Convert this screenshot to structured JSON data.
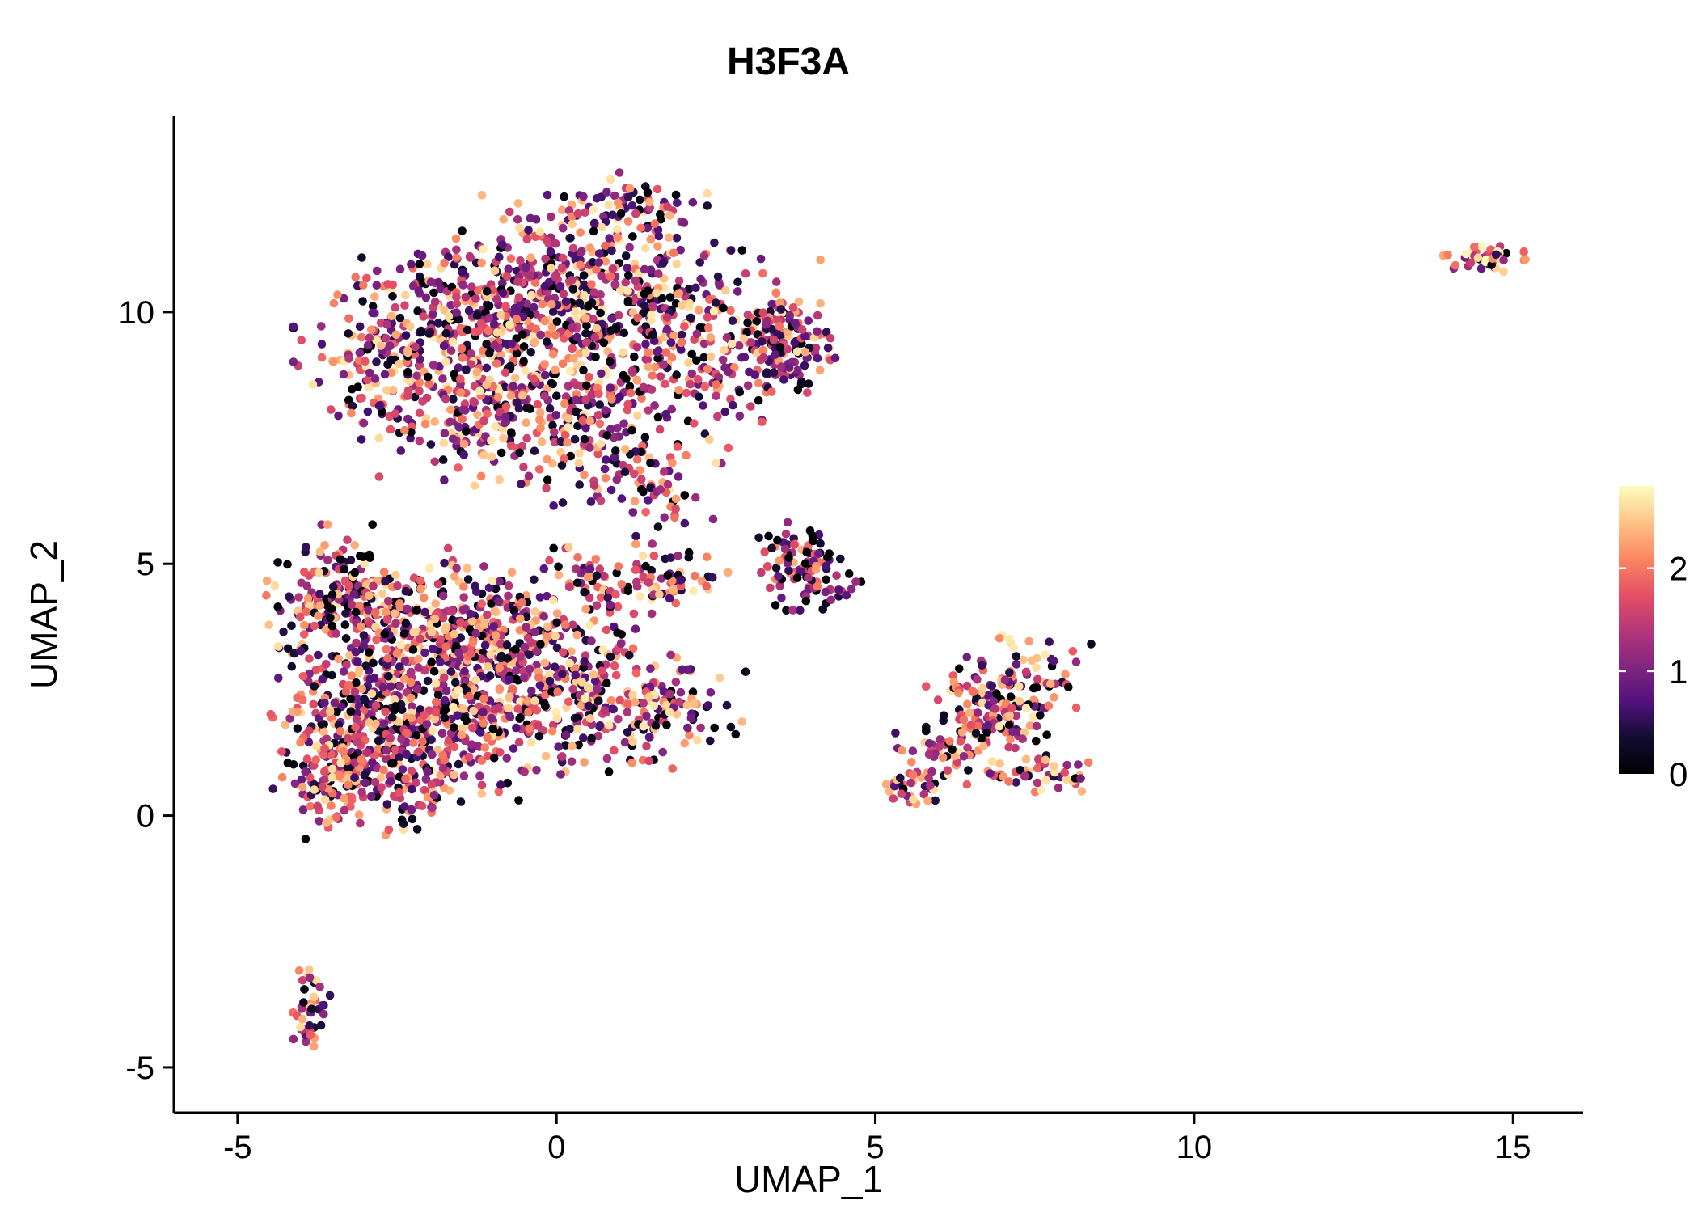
{
  "chart_data": {
    "type": "scatter",
    "title": "H3F3A",
    "xlabel": "UMAP_1",
    "ylabel": "UMAP_2",
    "xlim": [
      -6.0,
      16.1
    ],
    "ylim": [
      -5.9,
      13.9
    ],
    "xticks": [
      -5,
      0,
      5,
      10,
      15
    ],
    "yticks": [
      -5,
      0,
      5,
      10
    ],
    "grid": false,
    "background": "#ffffff",
    "axis_color": "#000000",
    "legend": {
      "type": "colorbar",
      "position": "right",
      "ticks": [
        0,
        1,
        2
      ],
      "vmax": 2.8,
      "colormap": "magma",
      "stops": [
        {
          "t": 0.0,
          "color": "#000004"
        },
        {
          "t": 0.125,
          "color": "#120d31"
        },
        {
          "t": 0.25,
          "color": "#51127c"
        },
        {
          "t": 0.375,
          "color": "#822681"
        },
        {
          "t": 0.5,
          "color": "#b63679"
        },
        {
          "t": 0.625,
          "color": "#e65164"
        },
        {
          "t": 0.75,
          "color": "#fb8861"
        },
        {
          "t": 0.875,
          "color": "#fec488"
        },
        {
          "t": 1.0,
          "color": "#fcfdbf"
        }
      ]
    },
    "points": {
      "seed": 42,
      "radius": 5.3,
      "zero_fraction": 0.06,
      "value_max": 2.7,
      "clusters": [
        {
          "name": "upper-main-cluster",
          "vshift": 0,
          "blobs": [
            {
              "cx": -2.4,
              "cy": 9.2,
              "sx": 0.75,
              "sy": 0.85,
              "n": 230
            },
            {
              "cx": -1.0,
              "cy": 10.0,
              "sx": 0.8,
              "sy": 0.8,
              "n": 250
            },
            {
              "cx": 0.5,
              "cy": 10.6,
              "sx": 0.9,
              "sy": 0.75,
              "n": 300
            },
            {
              "cx": 1.1,
              "cy": 12.0,
              "sx": 0.55,
              "sy": 0.35,
              "n": 70
            },
            {
              "cx": 0.2,
              "cy": 8.6,
              "sx": 1.1,
              "sy": 0.7,
              "n": 280
            },
            {
              "cx": 2.3,
              "cy": 9.5,
              "sx": 0.8,
              "sy": 0.75,
              "n": 220
            },
            {
              "cx": 3.6,
              "cy": 9.3,
              "sx": 0.35,
              "sy": 0.45,
              "n": 110
            },
            {
              "cx": -1.4,
              "cy": 7.7,
              "sx": 0.6,
              "sy": 0.5,
              "n": 90
            },
            {
              "cx": 0.9,
              "cy": 7.0,
              "sx": 0.7,
              "sy": 0.5,
              "n": 90
            },
            {
              "cx": 1.7,
              "cy": 6.2,
              "sx": 0.35,
              "sy": 0.35,
              "n": 25
            }
          ]
        },
        {
          "name": "lower-left-main-cluster",
          "vshift": 0,
          "blobs": [
            {
              "cx": -3.4,
              "cy": 4.4,
              "sx": 0.55,
              "sy": 0.6,
              "n": 140
            },
            {
              "cx": -2.0,
              "cy": 3.7,
              "sx": 0.85,
              "sy": 0.7,
              "n": 300
            },
            {
              "cx": -0.6,
              "cy": 3.3,
              "sx": 0.8,
              "sy": 0.7,
              "n": 260
            },
            {
              "cx": -3.1,
              "cy": 2.2,
              "sx": 0.6,
              "sy": 0.8,
              "n": 230
            },
            {
              "cx": -1.7,
              "cy": 1.8,
              "sx": 0.8,
              "sy": 0.65,
              "n": 230
            },
            {
              "cx": 0.3,
              "cy": 2.2,
              "sx": 0.8,
              "sy": 0.6,
              "n": 180
            },
            {
              "cx": 1.7,
              "cy": 2.2,
              "sx": 0.55,
              "sy": 0.5,
              "n": 90
            },
            {
              "cx": -3.5,
              "cy": 0.8,
              "sx": 0.45,
              "sy": 0.55,
              "n": 130
            },
            {
              "cx": -2.3,
              "cy": 0.6,
              "sx": 0.5,
              "sy": 0.4,
              "n": 80
            },
            {
              "cx": 1.0,
              "cy": 4.7,
              "sx": 0.6,
              "sy": 0.3,
              "n": 70
            },
            {
              "cx": 2.0,
              "cy": 4.65,
              "sx": 0.3,
              "sy": 0.25,
              "n": 30
            }
          ]
        },
        {
          "name": "small-center-cluster",
          "vshift": -0.3,
          "blobs": [
            {
              "cx": 3.9,
              "cy": 4.95,
              "sx": 0.3,
              "sy": 0.38,
              "n": 95
            },
            {
              "cx": 4.5,
              "cy": 4.6,
              "sx": 0.15,
              "sy": 0.15,
              "n": 10
            },
            {
              "cx": 3.3,
              "cy": 5.4,
              "sx": 0.1,
              "sy": 0.1,
              "n": 5
            }
          ]
        },
        {
          "name": "right-mid-cluster",
          "vshift": 0,
          "blobs": [
            {
              "cx": 7.35,
              "cy": 2.55,
              "sx": 0.45,
              "sy": 0.45,
              "n": 90
            },
            {
              "cx": 6.6,
              "cy": 2.25,
              "sx": 0.35,
              "sy": 0.35,
              "n": 55
            },
            {
              "cx": 6.1,
              "cy": 1.3,
              "sx": 0.35,
              "sy": 0.3,
              "n": 45
            },
            {
              "cx": 5.55,
              "cy": 0.65,
              "sx": 0.25,
              "sy": 0.18,
              "n": 35
            },
            {
              "cx": 7.6,
              "cy": 0.85,
              "sx": 0.45,
              "sy": 0.18,
              "n": 50
            },
            {
              "cx": 7.0,
              "cy": 1.7,
              "sx": 0.3,
              "sy": 0.3,
              "n": 30
            }
          ]
        },
        {
          "name": "bottom-left-small-cluster",
          "vshift": 0,
          "blobs": [
            {
              "cx": -3.85,
              "cy": -3.7,
              "sx": 0.13,
              "sy": 0.28,
              "n": 30
            },
            {
              "cx": -3.95,
              "cy": -4.3,
              "sx": 0.1,
              "sy": 0.15,
              "n": 15
            }
          ]
        },
        {
          "name": "top-right-small-cluster",
          "vshift": 0.5,
          "blobs": [
            {
              "cx": 14.55,
              "cy": 11.05,
              "sx": 0.28,
              "sy": 0.11,
              "n": 55
            }
          ]
        }
      ]
    }
  }
}
